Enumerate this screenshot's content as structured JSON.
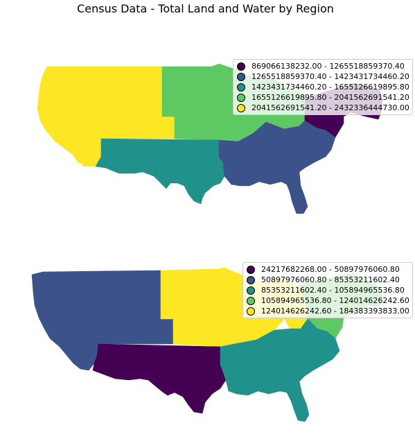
{
  "title": "Census Data - Total Land and Water by Region",
  "colors": {
    "class_1": "#440154",
    "class_2": "#3b528b",
    "class_3": "#21918c",
    "class_4": "#5ec962",
    "class_5": "#fde725"
  },
  "maps": [
    {
      "legend": [
        {
          "label": "869066138232.00 - 1265518859370.40",
          "color": "#440154"
        },
        {
          "label": "1265518859370.40 - 1423431734460.20",
          "color": "#3b528b"
        },
        {
          "label": "1423431734460.20 - 1655126619895.80",
          "color": "#21918c"
        },
        {
          "label": "1655126619895.80 - 2041562691541.20",
          "color": "#5ec962"
        },
        {
          "label": "2041562691541.20 - 2432336444730.00",
          "color": "#fde725"
        }
      ],
      "regions": [
        {
          "id": "west",
          "color": "#fde725"
        },
        {
          "id": "central",
          "color": "#5ec962"
        },
        {
          "id": "northeast",
          "color": "#5ec962"
        },
        {
          "id": "mid-atlantic",
          "color": "#440154"
        },
        {
          "id": "southwest",
          "color": "#21918c"
        },
        {
          "id": "southeast",
          "color": "#3b528b"
        }
      ]
    },
    {
      "legend": [
        {
          "label": "24217682268.00 - 50897976060.80",
          "color": "#440154"
        },
        {
          "label": "50897976060.80 - 85353211602.40",
          "color": "#3b528b"
        },
        {
          "label": "85353211602.40 - 105894965536.80",
          "color": "#21918c"
        },
        {
          "label": "105894965536.80 - 124014626242.60",
          "color": "#5ec962"
        },
        {
          "label": "124014626242.60 - 184383393833.00",
          "color": "#fde725"
        }
      ],
      "regions": [
        {
          "id": "west",
          "color": "#3b528b"
        },
        {
          "id": "central",
          "color": "#fde725"
        },
        {
          "id": "northeast",
          "color": "#fde725"
        },
        {
          "id": "mid-atlantic",
          "color": "#5ec962"
        },
        {
          "id": "southwest",
          "color": "#440154"
        },
        {
          "id": "southeast",
          "color": "#21918c"
        }
      ]
    }
  ]
}
